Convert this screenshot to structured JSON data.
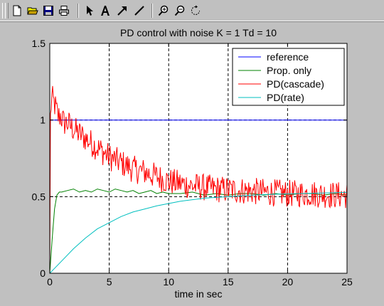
{
  "toolbar": {
    "buttons": [
      {
        "name": "new-figure-button",
        "icon": "new-file-icon"
      },
      {
        "name": "open-file-button",
        "icon": "folder-open-icon"
      },
      {
        "name": "save-figure-button",
        "icon": "floppy-disk-icon"
      },
      {
        "name": "print-figure-button",
        "icon": "printer-icon"
      },
      {
        "name": "edit-plot-button",
        "icon": "arrow-pointer-icon"
      },
      {
        "name": "insert-text-button",
        "icon": "text-a-icon"
      },
      {
        "name": "insert-arrow-button",
        "icon": "arrow-icon"
      },
      {
        "name": "insert-line-button",
        "icon": "line-icon"
      },
      {
        "name": "zoom-in-button",
        "icon": "zoom-in-icon"
      },
      {
        "name": "zoom-out-button",
        "icon": "zoom-out-icon"
      },
      {
        "name": "rotate-3d-button",
        "icon": "rotate-icon"
      }
    ]
  },
  "colors": {
    "figure_bg": "#c0c0c0",
    "axes_bg": "#ffffff",
    "reference": "#0000ff",
    "prop_only": "#008000",
    "pd_cascade": "#ff0000",
    "pd_rate": "#00bfbf"
  },
  "chart_data": {
    "type": "line",
    "title": "PD control with noise K = 1  Td = 10",
    "xlabel": "time in sec",
    "ylabel": "",
    "xlim": [
      0,
      25
    ],
    "ylim": [
      0,
      1.5
    ],
    "xticks": [
      0,
      5,
      10,
      15,
      20,
      25
    ],
    "xtick_labels": [
      "0",
      "5",
      "10",
      "15",
      "20",
      "25"
    ],
    "yticks": [
      0,
      0.5,
      1,
      1.5
    ],
    "ytick_labels": [
      "0",
      "0.5",
      "1",
      "1.5"
    ],
    "grid": "dashed",
    "legend_position": "top-right",
    "series": [
      {
        "name": "reference",
        "color": "#0000ff",
        "x": [
          0,
          25
        ],
        "y": [
          1,
          1
        ]
      },
      {
        "name": "Prop. only",
        "color": "#008000",
        "x": [
          0,
          0.2,
          0.4,
          0.6,
          0.8,
          1.0,
          1.5,
          2.0,
          2.5,
          3.0,
          3.5,
          4.0,
          4.5,
          5.0,
          5.5,
          6.0,
          6.5,
          7.0,
          7.5,
          8.0,
          8.5,
          9.0,
          9.5,
          10.0,
          11.0,
          12.0,
          13.0,
          14.0,
          15.0,
          16.0,
          17.0,
          18.0,
          19.0,
          20.0,
          21.0,
          22.0,
          23.0,
          24.0,
          25.0
        ],
        "y": [
          0,
          0.22,
          0.42,
          0.51,
          0.53,
          0.53,
          0.54,
          0.55,
          0.53,
          0.54,
          0.53,
          0.55,
          0.54,
          0.53,
          0.55,
          0.54,
          0.53,
          0.54,
          0.52,
          0.53,
          0.54,
          0.52,
          0.53,
          0.52,
          0.52,
          0.53,
          0.51,
          0.52,
          0.51,
          0.52,
          0.52,
          0.51,
          0.52,
          0.51,
          0.52,
          0.52,
          0.51,
          0.52,
          0.51
        ]
      },
      {
        "name": "PD(cascade)",
        "color": "#ff0000",
        "x": [
          0,
          0.05,
          0.15,
          0.3,
          0.5,
          0.7,
          0.9,
          1.2,
          1.5,
          2,
          3,
          4,
          5,
          6,
          7,
          8,
          9,
          10,
          12,
          14,
          16,
          18,
          20,
          22,
          24,
          25
        ],
        "y": [
          0.0,
          1.0,
          1.15,
          1.12,
          1.08,
          1.02,
          1.03,
          0.98,
          0.98,
          0.94,
          0.88,
          0.82,
          0.76,
          0.72,
          0.68,
          0.66,
          0.63,
          0.6,
          0.57,
          0.55,
          0.54,
          0.53,
          0.52,
          0.52,
          0.51,
          0.51
        ],
        "noise_amplitude": 0.09
      },
      {
        "name": "PD(rate)",
        "color": "#00bfbf",
        "x": [
          0,
          1,
          2,
          3,
          4,
          5,
          6,
          7,
          8,
          9,
          10,
          11,
          12,
          13,
          14,
          15,
          16,
          17,
          18,
          19,
          20,
          21,
          22,
          23,
          24,
          25
        ],
        "y": [
          0,
          0.08,
          0.16,
          0.23,
          0.29,
          0.33,
          0.37,
          0.4,
          0.42,
          0.44,
          0.455,
          0.47,
          0.48,
          0.49,
          0.495,
          0.5,
          0.505,
          0.51,
          0.513,
          0.516,
          0.518,
          0.52,
          0.522,
          0.524,
          0.526,
          0.528
        ]
      }
    ]
  }
}
